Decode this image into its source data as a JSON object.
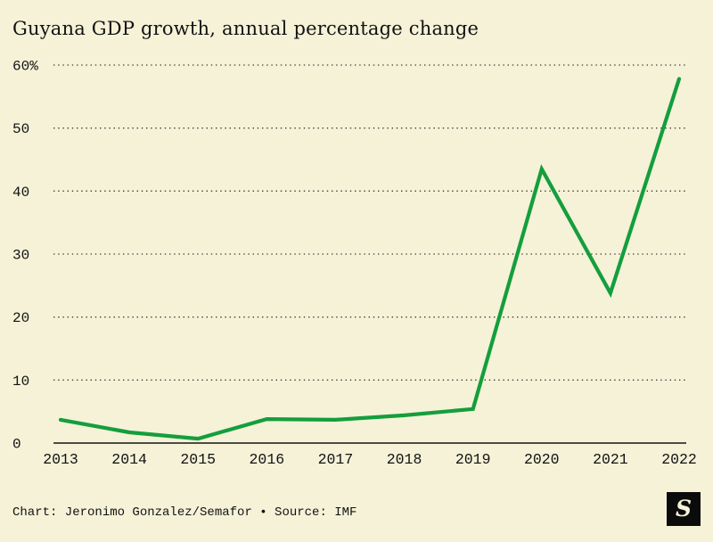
{
  "page": {
    "title": "Guyana GDP growth, annual percentage change",
    "footer_credit": "Chart: Jeronimo Gonzalez/Semafor • Source: IMF",
    "logo_letter": "S",
    "background_color": "#f5f2d8",
    "text_color": "#121212"
  },
  "chart_data": {
    "type": "line",
    "title": "Guyana GDP growth, annual percentage change",
    "categories": [
      "2013",
      "2014",
      "2015",
      "2016",
      "2017",
      "2018",
      "2019",
      "2020",
      "2021",
      "2022"
    ],
    "values": [
      3.7,
      1.7,
      0.7,
      3.8,
      3.7,
      4.4,
      5.4,
      43.5,
      23.8,
      57.8
    ],
    "ylabel": "",
    "xlabel": "",
    "ylim": [
      0,
      60
    ],
    "ytick_step": 10,
    "ytick_labels": [
      "0",
      "10",
      "20",
      "30",
      "40",
      "50",
      "60%"
    ],
    "line_color": "#149e3c",
    "grid": "dotted-horizontal",
    "legend": "none",
    "source": "IMF"
  }
}
